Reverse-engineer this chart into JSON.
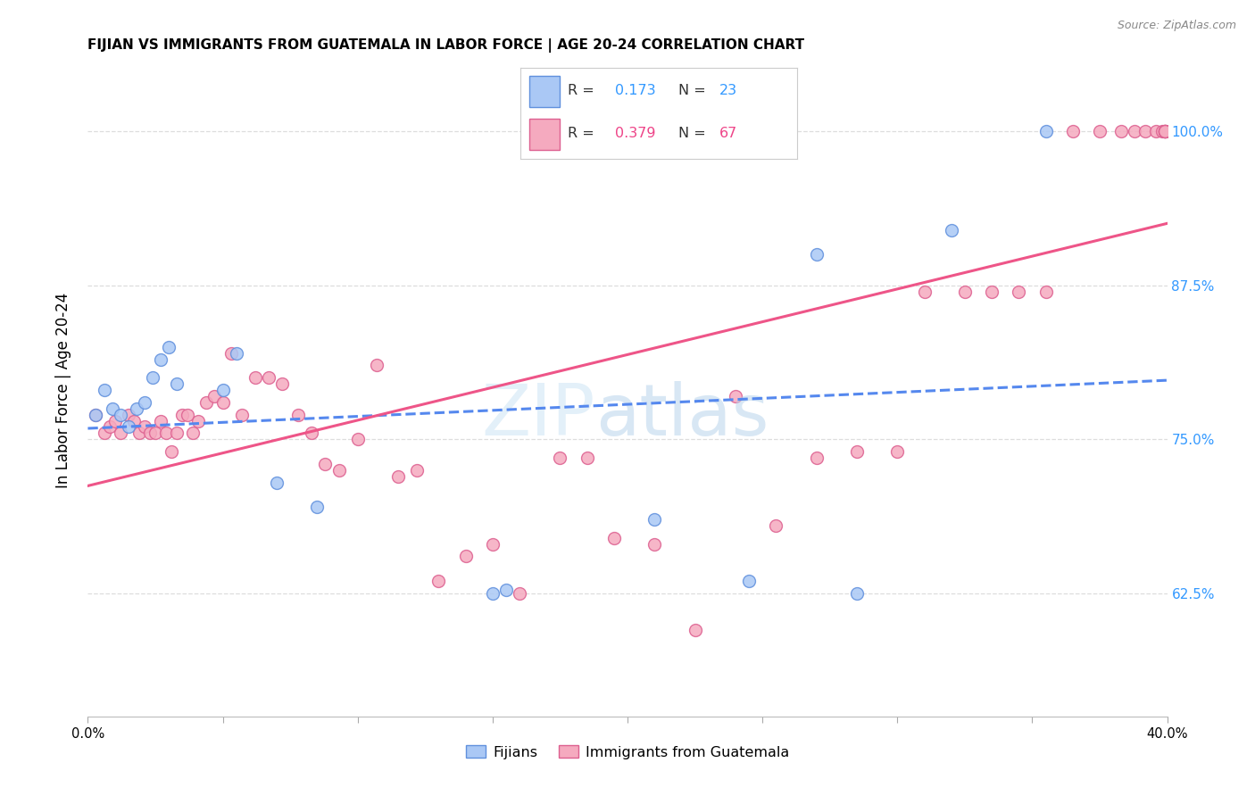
{
  "title": "FIJIAN VS IMMIGRANTS FROM GUATEMALA IN LABOR FORCE | AGE 20-24 CORRELATION CHART",
  "source": "Source: ZipAtlas.com",
  "ylabel": "In Labor Force | Age 20-24",
  "xmin": 0.0,
  "xmax": 0.4,
  "ymin": 0.525,
  "ymax": 1.055,
  "legend_r1": "0.173",
  "legend_n1": "23",
  "legend_r2": "0.379",
  "legend_n2": "67",
  "fijian_color": "#aac8f5",
  "guatemala_color": "#f5aabf",
  "fijian_edge": "#6090dd",
  "guatemala_edge": "#dd6090",
  "trendline_fijian_color": "#5588ee",
  "trendline_guatemala_color": "#ee5588",
  "grid_color": "#dddddd",
  "ytick_vals": [
    0.625,
    0.75,
    0.875,
    1.0
  ],
  "ytick_labels": [
    "62.5%",
    "75.0%",
    "87.5%",
    "100.0%"
  ],
  "fijians_x": [
    0.003,
    0.006,
    0.009,
    0.012,
    0.015,
    0.018,
    0.021,
    0.024,
    0.027,
    0.03,
    0.033,
    0.05,
    0.055,
    0.07,
    0.085,
    0.15,
    0.155,
    0.21,
    0.245,
    0.27,
    0.285,
    0.32,
    0.355
  ],
  "fijians_y": [
    0.77,
    0.79,
    0.775,
    0.77,
    0.76,
    0.775,
    0.78,
    0.8,
    0.815,
    0.825,
    0.795,
    0.79,
    0.82,
    0.715,
    0.695,
    0.625,
    0.628,
    0.685,
    0.635,
    0.9,
    0.625,
    0.92,
    1.0
  ],
  "guatemala_x": [
    0.003,
    0.006,
    0.008,
    0.01,
    0.012,
    0.015,
    0.017,
    0.019,
    0.021,
    0.023,
    0.025,
    0.027,
    0.029,
    0.031,
    0.033,
    0.035,
    0.037,
    0.039,
    0.041,
    0.044,
    0.047,
    0.05,
    0.053,
    0.057,
    0.062,
    0.067,
    0.072,
    0.078,
    0.083,
    0.088,
    0.093,
    0.1,
    0.107,
    0.115,
    0.122,
    0.13,
    0.14,
    0.15,
    0.16,
    0.175,
    0.185,
    0.195,
    0.21,
    0.225,
    0.24,
    0.255,
    0.27,
    0.285,
    0.3,
    0.31,
    0.325,
    0.335,
    0.345,
    0.355,
    0.365,
    0.375,
    0.383,
    0.388,
    0.392,
    0.396,
    0.398,
    0.399,
    0.399,
    0.399,
    0.399,
    0.399,
    0.399
  ],
  "guatemala_y": [
    0.77,
    0.755,
    0.76,
    0.765,
    0.755,
    0.77,
    0.765,
    0.755,
    0.76,
    0.755,
    0.755,
    0.765,
    0.755,
    0.74,
    0.755,
    0.77,
    0.77,
    0.755,
    0.765,
    0.78,
    0.785,
    0.78,
    0.82,
    0.77,
    0.8,
    0.8,
    0.795,
    0.77,
    0.755,
    0.73,
    0.725,
    0.75,
    0.81,
    0.72,
    0.725,
    0.635,
    0.655,
    0.665,
    0.625,
    0.735,
    0.735,
    0.67,
    0.665,
    0.595,
    0.785,
    0.68,
    0.735,
    0.74,
    0.74,
    0.87,
    0.87,
    0.87,
    0.87,
    0.87,
    1.0,
    1.0,
    1.0,
    1.0,
    1.0,
    1.0,
    1.0,
    1.0,
    1.0,
    1.0,
    1.0,
    1.0,
    1.0
  ]
}
